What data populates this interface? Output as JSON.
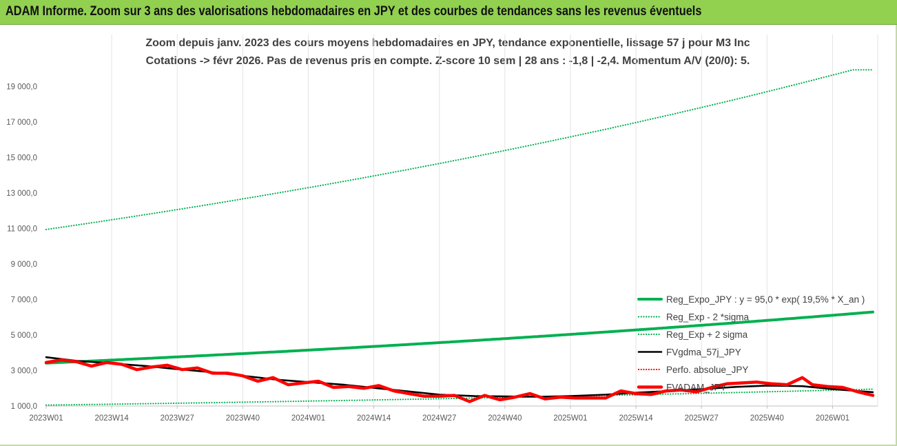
{
  "page": {
    "banner_title": "ADAM Informe. Zoom sur 3 ans des valorisations hebdomadaires en JPY et des courbes de tendances sans les revenus éventuels"
  },
  "chart_data": {
    "type": "line",
    "title_line1": "Zoom depuis janv. 2023 des cours moyens hebdomadaires en JPY, tendance exponentielle, lissage 57 j pour M3 Inc",
    "title_line2": "Cotations -> févr 2026.  Pas de revenus pris en compte. Z-score 10 sem | 28 ans : -1,8 | -2,4. Momentum A/V (20/0): 5.",
    "ylim": [
      1000,
      20000
    ],
    "y_ticks": [
      1000,
      3000,
      5000,
      7000,
      9000,
      11000,
      13000,
      15000,
      17000,
      19000
    ],
    "y_tick_labels": [
      "1 000,0",
      "3 000,0",
      "5 000,0",
      "7 000,0",
      "9 000,0",
      "11 000,0",
      "13 000,0",
      "15 000,0",
      "17 000,0",
      "19 000,0"
    ],
    "x_count": 165,
    "x_tick_labels": [
      "2023W01",
      "2023W14",
      "2023W27",
      "2023W40",
      "2024W01",
      "2024W14",
      "2024W27",
      "2024W40",
      "2025W01",
      "2025W14",
      "2025W27",
      "2025W40",
      "2026W01"
    ],
    "x_tick_indices": [
      0,
      13,
      26,
      39,
      52,
      65,
      78,
      91,
      104,
      117,
      130,
      143,
      156
    ],
    "grid": "vertical",
    "legend_position": "bottom-right",
    "series": [
      {
        "name": "Reg_Expo_JPY : y = 95,0 * exp( 19,5% *  X_an )",
        "color": "#00b050",
        "style": "solid-thick",
        "x": [
          0,
          164
        ],
        "y": [
          3420,
          6300
        ],
        "curve": "exponential"
      },
      {
        "name": "Reg_Exp - 2 *sigma",
        "color": "#00b050",
        "style": "dotted",
        "x": [
          0,
          164
        ],
        "y": [
          1050,
          1950
        ],
        "curve": "exponential"
      },
      {
        "name": "Reg_Exp + 2 sigma",
        "color": "#00b050",
        "style": "dotted",
        "x": [
          0,
          160,
          164
        ],
        "y": [
          10950,
          19950,
          19950
        ],
        "curve": "exponential"
      },
      {
        "name": "FVgdma_57j_JPY",
        "color": "#000000",
        "style": "solid",
        "x": [
          0,
          6,
          13,
          20,
          26,
          33,
          39,
          46,
          52,
          59,
          65,
          72,
          78,
          85,
          91,
          98,
          104,
          111,
          117,
          124,
          130,
          137,
          143,
          150,
          156,
          164
        ],
        "y": [
          3750,
          3550,
          3400,
          3250,
          3080,
          2900,
          2700,
          2480,
          2350,
          2200,
          2020,
          1820,
          1640,
          1560,
          1540,
          1520,
          1560,
          1640,
          1750,
          1850,
          1950,
          2080,
          2150,
          2120,
          1950,
          1780
        ]
      },
      {
        "name": "Perfo. absolue_JPY",
        "color": "#ff0000",
        "style": "dotted",
        "x": [
          0,
          3,
          6,
          9,
          12,
          15,
          18,
          21,
          24,
          27,
          30,
          33,
          36,
          39,
          42,
          45,
          48,
          51,
          54,
          57,
          60,
          63,
          66,
          69,
          72,
          75,
          78,
          81,
          84,
          87,
          90,
          93,
          96,
          99,
          102,
          105,
          108,
          111,
          114,
          117,
          120,
          123,
          126,
          129,
          132,
          135,
          138,
          141,
          144,
          147,
          150,
          152,
          155,
          158,
          161,
          164
        ],
        "y": [
          3450,
          3600,
          3500,
          3250,
          3450,
          3350,
          3050,
          3200,
          3300,
          3050,
          3150,
          2850,
          2850,
          2700,
          2400,
          2600,
          2200,
          2300,
          2400,
          2050,
          2100,
          2000,
          2150,
          1850,
          1700,
          1550,
          1550,
          1600,
          1250,
          1600,
          1350,
          1500,
          1700,
          1400,
          1500,
          1450,
          1450,
          1450,
          1850,
          1700,
          1650,
          1850,
          1900,
          1800,
          2050,
          2250,
          2300,
          2350,
          2250,
          2200,
          2600,
          2200,
          2100,
          2050,
          1800,
          1600
        ]
      },
      {
        "name": "FVADAM_JPY",
        "color": "#ff0000",
        "style": "solid-thick",
        "x": [
          0,
          3,
          6,
          9,
          12,
          15,
          18,
          21,
          24,
          27,
          30,
          33,
          36,
          39,
          42,
          45,
          48,
          51,
          54,
          57,
          60,
          63,
          66,
          69,
          72,
          75,
          78,
          81,
          84,
          87,
          90,
          93,
          96,
          99,
          102,
          105,
          108,
          111,
          114,
          117,
          120,
          123,
          126,
          129,
          132,
          135,
          138,
          141,
          144,
          147,
          150,
          152,
          155,
          158,
          161,
          164
        ],
        "y": [
          3450,
          3600,
          3500,
          3250,
          3450,
          3350,
          3050,
          3200,
          3300,
          3050,
          3150,
          2850,
          2850,
          2700,
          2400,
          2600,
          2200,
          2300,
          2400,
          2050,
          2100,
          2000,
          2150,
          1850,
          1700,
          1550,
          1550,
          1600,
          1250,
          1600,
          1350,
          1500,
          1700,
          1400,
          1500,
          1450,
          1450,
          1450,
          1850,
          1700,
          1650,
          1850,
          1900,
          1800,
          2050,
          2250,
          2300,
          2350,
          2250,
          2200,
          2600,
          2200,
          2100,
          2050,
          1800,
          1600
        ]
      }
    ]
  }
}
